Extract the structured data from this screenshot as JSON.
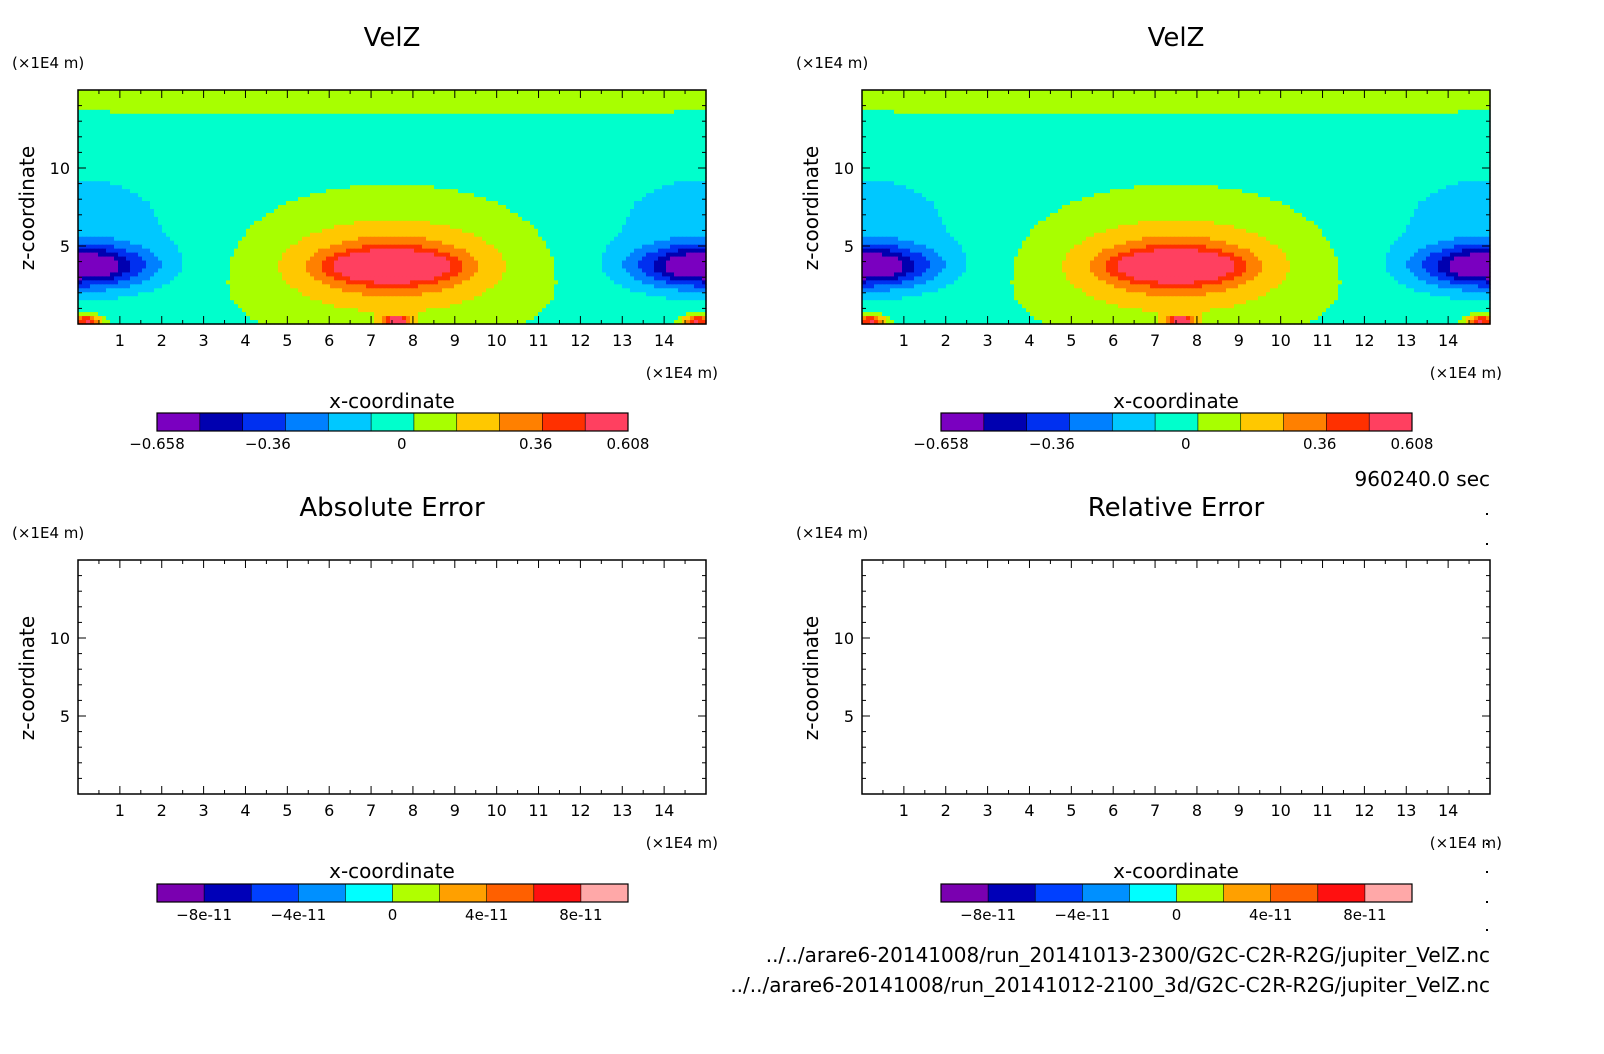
{
  "chart_data": [
    {
      "type": "heatmap",
      "title": "VelZ",
      "xlabel": "x-coordinate",
      "ylabel": "z-coordinate",
      "x_unit": "(×1E4 m)",
      "y_unit": "(×1E4 m)",
      "xlim": [
        0,
        15
      ],
      "ylim": [
        0,
        15
      ],
      "x_ticks": [
        "1",
        "2",
        "3",
        "4",
        "5",
        "6",
        "7",
        "8",
        "9",
        "10",
        "11",
        "12",
        "13",
        "14"
      ],
      "y_ticks": [
        "5",
        "10"
      ],
      "colorbar": {
        "range": [
          -0.658,
          0.608
        ],
        "tick_labels": [
          "-0.658",
          "-0.36",
          "0",
          "0.36",
          "0.608"
        ],
        "colors": [
          "#7a00c0",
          "#0000b0",
          "#0030f0",
          "#0080ff",
          "#00c8ff",
          "#00ffcc",
          "#a8ff00",
          "#ffc800",
          "#ff8000",
          "#ff3000",
          "#ff4060"
        ]
      },
      "field": "VelZ contours: strong negative cores near x=0 and x=15 at z~3.7, strong positive core near x=7.5 at z~3.7"
    },
    {
      "type": "heatmap",
      "title": "VelZ",
      "xlabel": "x-coordinate",
      "ylabel": "z-coordinate",
      "x_unit": "(×1E4 m)",
      "y_unit": "(×1E4 m)",
      "xlim": [
        0,
        15
      ],
      "ylim": [
        0,
        15
      ],
      "x_ticks": [
        "1",
        "2",
        "3",
        "4",
        "5",
        "6",
        "7",
        "8",
        "9",
        "10",
        "11",
        "12",
        "13",
        "14"
      ],
      "y_ticks": [
        "5",
        "10"
      ],
      "colorbar": {
        "range": [
          -0.658,
          0.608
        ],
        "tick_labels": [
          "-0.658",
          "-0.36",
          "0",
          "0.36",
          "0.608"
        ],
        "colors": [
          "#7a00c0",
          "#0000b0",
          "#0030f0",
          "#0080ff",
          "#00c8ff",
          "#00ffcc",
          "#a8ff00",
          "#ffc800",
          "#ff8000",
          "#ff3000",
          "#ff4060"
        ]
      }
    },
    {
      "type": "heatmap",
      "title": "Absolute Error",
      "xlabel": "x-coordinate",
      "ylabel": "z-coordinate",
      "x_unit": "(×1E4 m)",
      "y_unit": "(×1E4 m)",
      "xlim": [
        0,
        15
      ],
      "ylim": [
        0,
        15
      ],
      "x_ticks": [
        "1",
        "2",
        "3",
        "4",
        "5",
        "6",
        "7",
        "8",
        "9",
        "10",
        "11",
        "12",
        "13",
        "14"
      ],
      "y_ticks": [
        "5",
        "10"
      ],
      "colorbar": {
        "range": [
          -1e-10,
          1e-10
        ],
        "tick_labels": [
          "-8e-11",
          "-4e-11",
          "0",
          "4e-11",
          "8e-11"
        ],
        "colors": [
          "#7a00b0",
          "#0000b8",
          "#0040ff",
          "#0090ff",
          "#00ffff",
          "#b0ff00",
          "#ffa000",
          "#ff6000",
          "#ff1010",
          "#ffa8a8"
        ]
      },
      "empty": true
    },
    {
      "type": "heatmap",
      "title": "Relative Error",
      "xlabel": "x-coordinate",
      "ylabel": "z-coordinate",
      "x_unit": "(×1E4 m)",
      "y_unit": "(×1E4 m)",
      "xlim": [
        0,
        15
      ],
      "ylim": [
        0,
        15
      ],
      "x_ticks": [
        "1",
        "2",
        "3",
        "4",
        "5",
        "6",
        "7",
        "8",
        "9",
        "10",
        "11",
        "12",
        "13",
        "14"
      ],
      "y_ticks": [
        "5",
        "10"
      ],
      "colorbar": {
        "range": [
          -1e-10,
          1e-10
        ],
        "tick_labels": [
          "-8e-11",
          "-4e-11",
          "0",
          "4e-11",
          "8e-11"
        ],
        "colors": [
          "#7a00b0",
          "#0000b8",
          "#0040ff",
          "#0090ff",
          "#00ffff",
          "#b0ff00",
          "#ffa000",
          "#ff6000",
          "#ff1010",
          "#ffa8a8"
        ]
      },
      "empty": true
    }
  ],
  "time_label": "960240.0 sec",
  "file_paths": [
    "../../arare6-20141008/run_20141013-2300/G2C-C2R-R2G/jupiter_VelZ.nc",
    "../../arare6-20141008/run_20141012-2100_3d/G2C-C2R-R2G/jupiter_VelZ.nc"
  ]
}
